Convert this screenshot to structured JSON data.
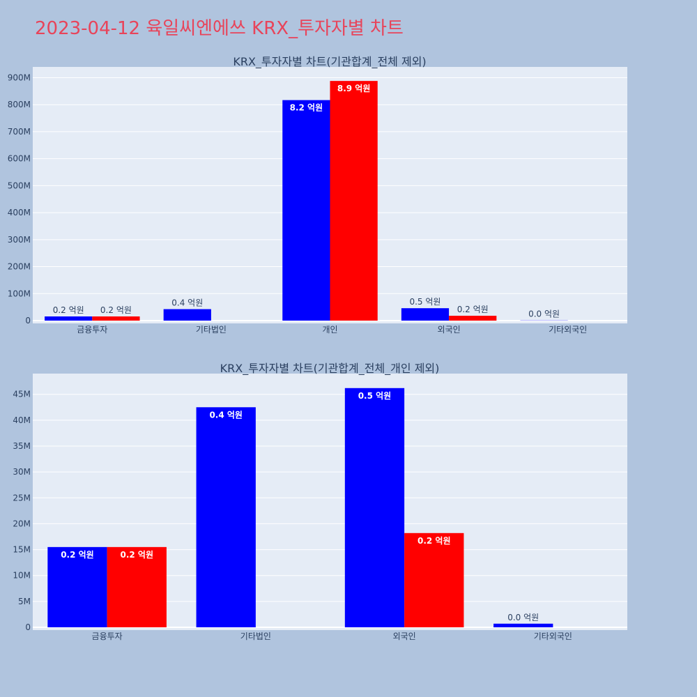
{
  "page_title": "2023-04-12 육일씨엔에쓰 KRX_투자자별 차트",
  "colors": {
    "background": "#b0c4de",
    "plot_bg": "#e5ecf6",
    "title": "#e8445a",
    "series_a": "#0000ff",
    "series_b": "#ff0000"
  },
  "chart_data": [
    {
      "type": "bar",
      "title": "KRX_투자자별 차트(기관합계_전체 제외)",
      "categories": [
        "금융투자",
        "기타법인",
        "개인",
        "외국인",
        "기타외국인"
      ],
      "ylim": [
        0,
        940000000
      ],
      "y_ticks": [
        0,
        100000000,
        200000000,
        300000000,
        400000000,
        500000000,
        600000000,
        700000000,
        800000000,
        900000000
      ],
      "y_tick_labels": [
        "0",
        "100M",
        "200M",
        "300M",
        "400M",
        "500M",
        "600M",
        "700M",
        "800M",
        "900M"
      ],
      "grid": true,
      "series": [
        {
          "color": "#0000ff",
          "values": [
            15500000,
            42500000,
            817000000,
            46000000,
            700000
          ],
          "labels": [
            "0.2 억원",
            "0.4 억원",
            "8.2 억원",
            "0.5 억원",
            "0.0 억원"
          ]
        },
        {
          "color": "#ff0000",
          "values": [
            15500000,
            0,
            888000000,
            18000000,
            0
          ],
          "labels": [
            "0.2 억원",
            "",
            "8.9 억원",
            "0.2 억원",
            ""
          ]
        }
      ]
    },
    {
      "type": "bar",
      "title": "KRX_투자자별 차트(기관합계_전체_개인 제외)",
      "categories": [
        "금융투자",
        "기타법인",
        "외국인",
        "기타외국인"
      ],
      "ylim": [
        0,
        49000000
      ],
      "y_ticks": [
        0,
        5000000,
        10000000,
        15000000,
        20000000,
        25000000,
        30000000,
        35000000,
        40000000,
        45000000
      ],
      "y_tick_labels": [
        "0",
        "5M",
        "10M",
        "15M",
        "20M",
        "25M",
        "30M",
        "35M",
        "40M",
        "45M"
      ],
      "grid": true,
      "series": [
        {
          "color": "#0000ff",
          "values": [
            15500000,
            42500000,
            46200000,
            700000
          ],
          "labels": [
            "0.2 억원",
            "0.4 억원",
            "0.5 억원",
            "0.0 억원"
          ]
        },
        {
          "color": "#ff0000",
          "values": [
            15500000,
            0,
            18200000,
            0
          ],
          "labels": [
            "0.2 억원",
            "",
            "0.2 억원",
            ""
          ]
        }
      ]
    }
  ]
}
